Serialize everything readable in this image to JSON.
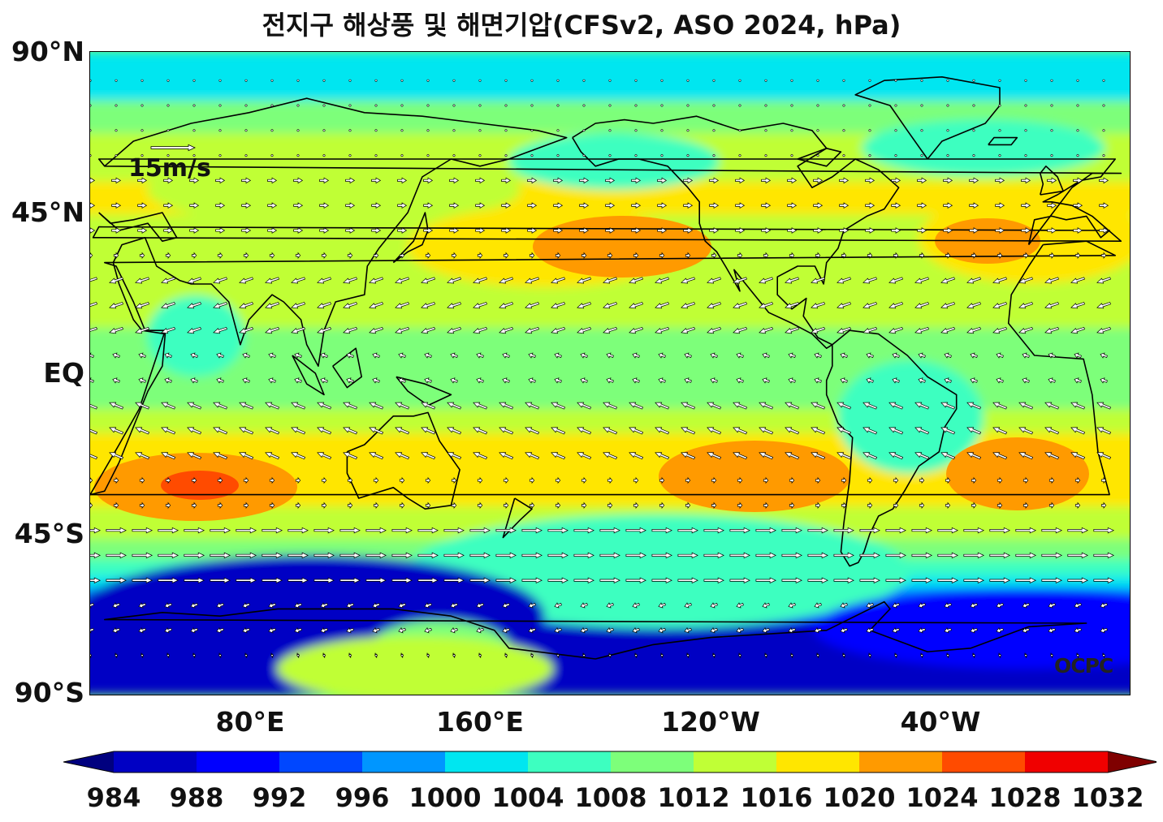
{
  "title": "전지구 해상풍 및 해면기압(CFSv2, ASO 2024, hPa)",
  "y_axis": {
    "ticks": [
      "90°N",
      "45°N",
      "EQ",
      "45°S",
      "90°S"
    ]
  },
  "x_axis": {
    "ticks": [
      "80°E",
      "160°E",
      "120°W",
      "40°W"
    ]
  },
  "reference_vector": {
    "label": "15m/s",
    "speed_ms": 15
  },
  "watermark": "OCPC",
  "colorbar": {
    "levels": [
      "984",
      "988",
      "992",
      "996",
      "1000",
      "1004",
      "1008",
      "1012",
      "1016",
      "1020",
      "1024",
      "1028",
      "1032"
    ],
    "colors": [
      "#00007f",
      "#0000c4",
      "#0000ff",
      "#0047ff",
      "#0096ff",
      "#00e6f0",
      "#3dffc0",
      "#7dff7a",
      "#c0ff36",
      "#ffe600",
      "#ff9a00",
      "#ff4b00",
      "#f00000",
      "#7f0000"
    ],
    "extend": "both"
  },
  "colors": {
    "land_outline": "#000000",
    "vector_fill": "#ffffff",
    "vector_outline": "#000000"
  }
}
